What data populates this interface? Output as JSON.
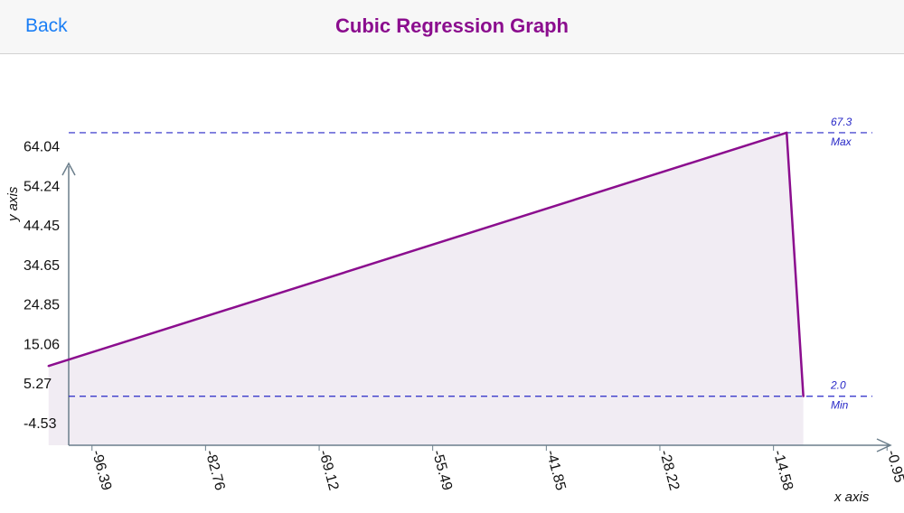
{
  "navbar": {
    "back_label": "Back",
    "title": "Cubic Regression Graph"
  },
  "chart_data": {
    "type": "area",
    "title": "Cubic Regression Graph",
    "xlabel": "x axis",
    "ylabel": "y axis",
    "x_ticks": [
      -96.39,
      -82.76,
      -69.12,
      -55.49,
      -41.85,
      -28.22,
      -14.58,
      -0.95
    ],
    "x_tick_labels": [
      "-96.39",
      "-82.76",
      "-69.12",
      "-55.49",
      "-41.85",
      "-28.22",
      "-14.58",
      "-0.95"
    ],
    "y_ticks": [
      -4.53,
      5.27,
      15.06,
      24.85,
      34.65,
      44.45,
      54.24,
      64.04
    ],
    "y_tick_labels": [
      "-4.53",
      "5.27",
      "15.06",
      "24.85",
      "34.65",
      "44.45",
      "54.24",
      "64.04"
    ],
    "series": [
      {
        "x": [
          -101.6,
          -13.0,
          -11.0
        ],
        "y": [
          9.5,
          67.3,
          2.0
        ],
        "color": "#8b0d8e"
      }
    ],
    "reference_lines": [
      {
        "value": 67.3,
        "value_label": "67.3",
        "label": "Max",
        "color": "#2727c7"
      },
      {
        "value": 2.0,
        "value_label": "2.0",
        "label": "Min",
        "color": "#2727c7"
      }
    ],
    "fill_color": "#f1ecf3",
    "axis_color": "#6c7f8c"
  }
}
